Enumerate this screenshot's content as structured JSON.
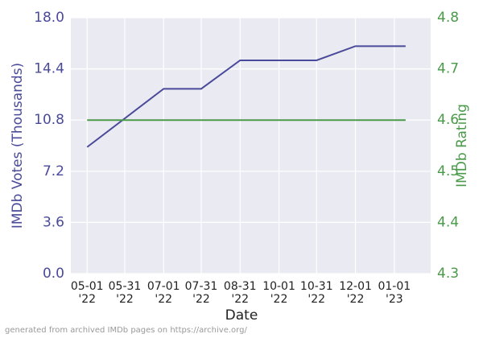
{
  "chart_data": {
    "type": "line",
    "xlabel": "Date",
    "ylabel": "IMDb Votes (Thousands)",
    "y2label": "IMDb Rating",
    "footnote": "generated from archived IMDb pages on https://archive.org/",
    "x": [
      "2022-05-01",
      "2022-07-01",
      "2022-07-31",
      "2022-08-31",
      "2022-10-31",
      "2022-12-01",
      "2023-01-10"
    ],
    "series": [
      {
        "color": "#4a4a9a",
        "values": [
          8.9,
          13.0,
          13.0,
          15.0,
          15.0,
          16.0,
          16.0
        ]
      },
      {
        "color": "#4a9a4a",
        "axis": "y2",
        "values": [
          4.6,
          4.6,
          4.6,
          4.6,
          4.6,
          4.6,
          4.6
        ]
      }
    ],
    "xlim": [
      "2022-04-18",
      "2023-01-30"
    ],
    "xticks": [
      {
        "value": "2022-05-01",
        "label": "05-01\n'22"
      },
      {
        "value": "2022-05-31",
        "label": "05-31\n'22"
      },
      {
        "value": "2022-07-01",
        "label": "07-01\n'22"
      },
      {
        "value": "2022-07-31",
        "label": "07-31\n'22"
      },
      {
        "value": "2022-08-31",
        "label": "08-31\n'22"
      },
      {
        "value": "2022-10-01",
        "label": "10-01\n'22"
      },
      {
        "value": "2022-10-31",
        "label": "10-31\n'22"
      },
      {
        "value": "2022-12-01",
        "label": "12-01\n'22"
      },
      {
        "value": "2023-01-01",
        "label": "01-01\n'23"
      }
    ],
    "ylim": [
      0,
      18
    ],
    "yticks": [
      {
        "value": 0,
        "label": "0.0"
      },
      3.6,
      7.2,
      10.8,
      14.4,
      {
        "value": 18,
        "label": "18.0"
      }
    ],
    "y2lim": [
      4.3,
      4.8
    ],
    "y2ticks": [
      4.3,
      4.4,
      4.5,
      4.6,
      4.7,
      4.8
    ],
    "grid": true
  }
}
